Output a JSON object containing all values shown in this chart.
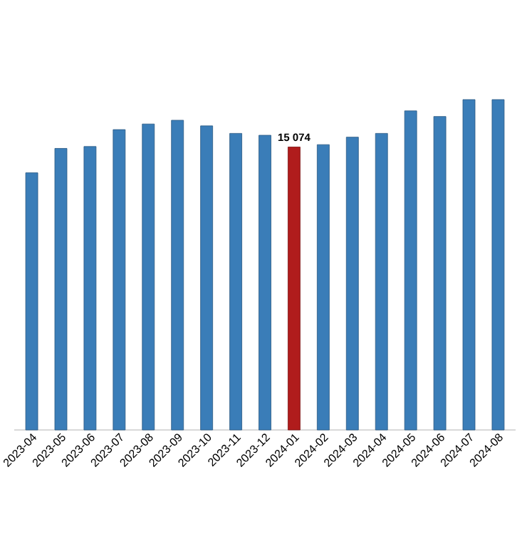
{
  "chart_data": {
    "type": "bar",
    "categories": [
      "2023-04",
      "2023-05",
      "2023-06",
      "2023-07",
      "2023-08",
      "2023-09",
      "2023-10",
      "2023-11",
      "2023-12",
      "2024-01",
      "2024-02",
      "2024-03",
      "2024-04",
      "2024-05",
      "2024-06",
      "2024-07",
      "2024-08"
    ],
    "values": [
      13700,
      15000,
      15100,
      16000,
      16300,
      16500,
      16200,
      15800,
      15700,
      15074,
      15200,
      15600,
      15800,
      17000,
      16700,
      17600,
      17600
    ],
    "colors": [
      "#3a7db8",
      "#3a7db8",
      "#3a7db8",
      "#3a7db8",
      "#3a7db8",
      "#3a7db8",
      "#3a7db8",
      "#3a7db8",
      "#3a7db8",
      "#b01c1c",
      "#3a7db8",
      "#3a7db8",
      "#3a7db8",
      "#3a7db8",
      "#3a7db8",
      "#3a7db8",
      "#3a7db8"
    ],
    "value_labels": [
      null,
      null,
      null,
      null,
      null,
      null,
      null,
      null,
      null,
      "15 074",
      null,
      null,
      null,
      null,
      null,
      null,
      null
    ],
    "tick_labels": "x"
  }
}
